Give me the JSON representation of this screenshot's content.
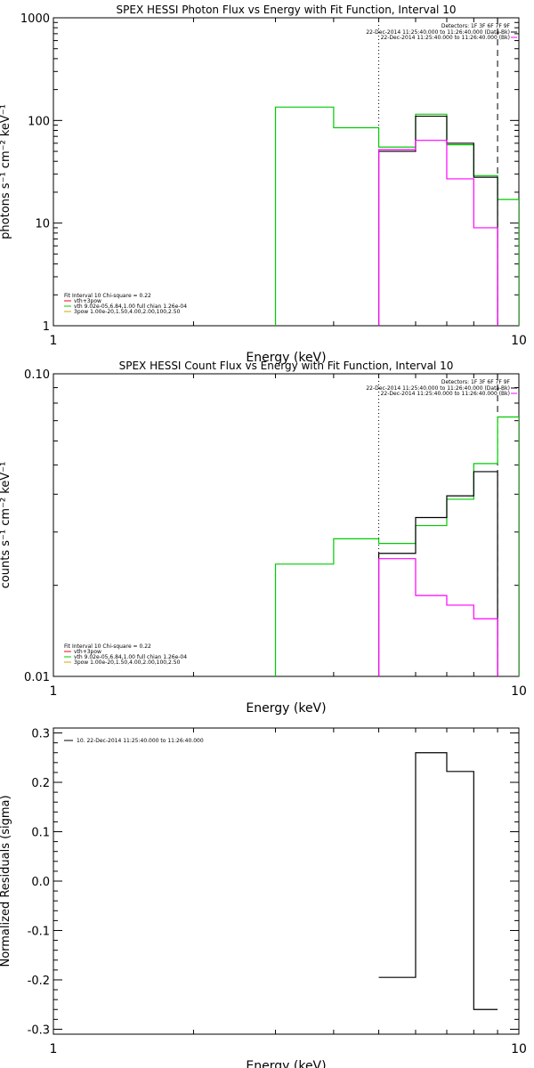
{
  "chart_data": [
    {
      "type": "line",
      "title": "SPEX HESSI Photon Flux vs Energy with Fit Function, Interval 10",
      "xlabel": "Energy (keV)",
      "ylabel": "photons s⁻¹ cm⁻² keV⁻¹",
      "xscale": "log",
      "yscale": "log",
      "xlim": [
        1,
        10
      ],
      "ylim": [
        1,
        1000
      ],
      "x_ticks": [
        {
          "v": 1,
          "label": "1"
        },
        {
          "v": 10,
          "label": "10"
        }
      ],
      "y_ticks": [
        {
          "v": 1,
          "label": "1"
        },
        {
          "v": 10,
          "label": "10"
        },
        {
          "v": 100,
          "label": "100"
        },
        {
          "v": 1000,
          "label": "1000"
        }
      ],
      "vlines": [
        {
          "x": 5.0,
          "style": "dotted"
        },
        {
          "x": 9.0,
          "style": "dashed"
        }
      ],
      "legend_top": {
        "placement": "top-right",
        "header": "Detectors: 1F 3F 6F 7F 9F",
        "entries": [
          {
            "text": "22-Dec-2014 11:25:40.000 to 11:26:40.000 (Data-Bk)",
            "color": "#000000"
          },
          {
            "text": "22-Dec-2014 11:25:40.000 to 11:26:40.000 (Bk)",
            "color": "#ff00ff"
          }
        ]
      },
      "legend_bottom": {
        "placement": "bottom-left",
        "header": "Fit Interval 10   Chi-square = 0.22",
        "entries": [
          {
            "text": "vth+3pow",
            "color": "#ff0000"
          },
          {
            "text": "vth 9.02e-05,6.84,1.00  full chian 1.26e-04",
            "color": "#00cc00"
          },
          {
            "text": "3pow 1.00e-20,1.50,4.00,2.00,100,2.50",
            "color": "#ccaa00"
          }
        ]
      },
      "series": [
        {
          "name": "green",
          "color": "#00cc00",
          "edges": [
            3,
            4,
            5,
            6,
            7,
            8,
            9,
            10
          ],
          "values": [
            135,
            85,
            55,
            115,
            58,
            29,
            17
          ]
        },
        {
          "name": "black",
          "color": "#000000",
          "edges": [
            5,
            6,
            7,
            8,
            9
          ],
          "values": [
            50,
            110,
            60,
            28
          ]
        },
        {
          "name": "magenta",
          "color": "#ff00ff",
          "edges": [
            5,
            6,
            7,
            8,
            9
          ],
          "values": [
            52,
            64,
            27,
            9
          ]
        }
      ]
    },
    {
      "type": "line",
      "title": "SPEX HESSI Count Flux vs Energy with Fit Function, Interval 10",
      "xlabel": "Energy (keV)",
      "ylabel": "counts s⁻¹ cm⁻² keV⁻¹",
      "xscale": "log",
      "yscale": "log",
      "xlim": [
        1,
        10
      ],
      "ylim": [
        0.01,
        0.1
      ],
      "x_ticks": [
        {
          "v": 1,
          "label": "1"
        },
        {
          "v": 10,
          "label": "10"
        }
      ],
      "y_ticks": [
        {
          "v": 0.01,
          "label": "0.01"
        },
        {
          "v": 0.1,
          "label": "0.10"
        }
      ],
      "vlines": [
        {
          "x": 5.0,
          "style": "dotted"
        },
        {
          "x": 9.0,
          "style": "dashed"
        }
      ],
      "legend_top": {
        "placement": "top-right",
        "header": "Detectors: 1F 3F 6F 7F 9F",
        "entries": [
          {
            "text": "22-Dec-2014 11:25:40.000 to 11:26:40.000 (Data-Bk)",
            "color": "#000000"
          },
          {
            "text": "22-Dec-2014 11:25:40.000 to 11:26:40.000 (Bk)",
            "color": "#ff00ff"
          }
        ]
      },
      "legend_bottom": {
        "placement": "bottom-left",
        "header": "Fit Interval 10   Chi-square = 0.22",
        "entries": [
          {
            "text": "vth+3pow",
            "color": "#ff0000"
          },
          {
            "text": "vth 9.02e-05,6.84,1.00  full chian 1.26e-04",
            "color": "#00cc00"
          },
          {
            "text": "3pow 1.00e-20,1.50,4.00,2.00,100,2.50",
            "color": "#ccaa00"
          }
        ]
      },
      "series": [
        {
          "name": "green",
          "color": "#00cc00",
          "edges": [
            3,
            4,
            5,
            6,
            7,
            8,
            9,
            10
          ],
          "values": [
            0.0235,
            0.0285,
            0.0275,
            0.0315,
            0.0385,
            0.0505,
            0.072
          ]
        },
        {
          "name": "black",
          "color": "#000000",
          "edges": [
            5,
            6,
            7,
            8,
            9
          ],
          "values": [
            0.0255,
            0.0335,
            0.0395,
            0.0475
          ]
        },
        {
          "name": "magenta",
          "color": "#ff00ff",
          "edges": [
            5,
            6,
            7,
            8,
            9
          ],
          "values": [
            0.0245,
            0.0185,
            0.0172,
            0.0155
          ]
        }
      ]
    },
    {
      "type": "line",
      "title": "",
      "xlabel": "Energy (keV)",
      "ylabel": "Normalized Residuals (sigma)",
      "xscale": "log",
      "yscale": "linear",
      "xlim": [
        1,
        10
      ],
      "ylim": [
        -0.31,
        0.31
      ],
      "x_ticks": [
        {
          "v": 1,
          "label": "1"
        },
        {
          "v": 10,
          "label": "10"
        }
      ],
      "y_ticks": [
        {
          "v": 0.3,
          "label": "0.3"
        },
        {
          "v": 0.2,
          "label": "0.2"
        },
        {
          "v": 0.1,
          "label": "0.1"
        },
        {
          "v": 0.0,
          "label": "0.0"
        },
        {
          "v": -0.1,
          "label": "-0.1"
        },
        {
          "v": -0.2,
          "label": "-0.2"
        },
        {
          "v": -0.3,
          "label": "-0.3"
        }
      ],
      "vlines": [],
      "legend_top": {
        "placement": "top-left",
        "header": "",
        "entries": [
          {
            "text": "10. 22-Dec-2014 11:25:40.000 to 11:26:40.000",
            "color": "#000000"
          }
        ]
      },
      "series": [
        {
          "name": "residuals",
          "color": "#000000",
          "edges": [
            5,
            6,
            7,
            8,
            9
          ],
          "values": [
            -0.195,
            0.26,
            0.222,
            -0.26
          ]
        }
      ]
    }
  ]
}
